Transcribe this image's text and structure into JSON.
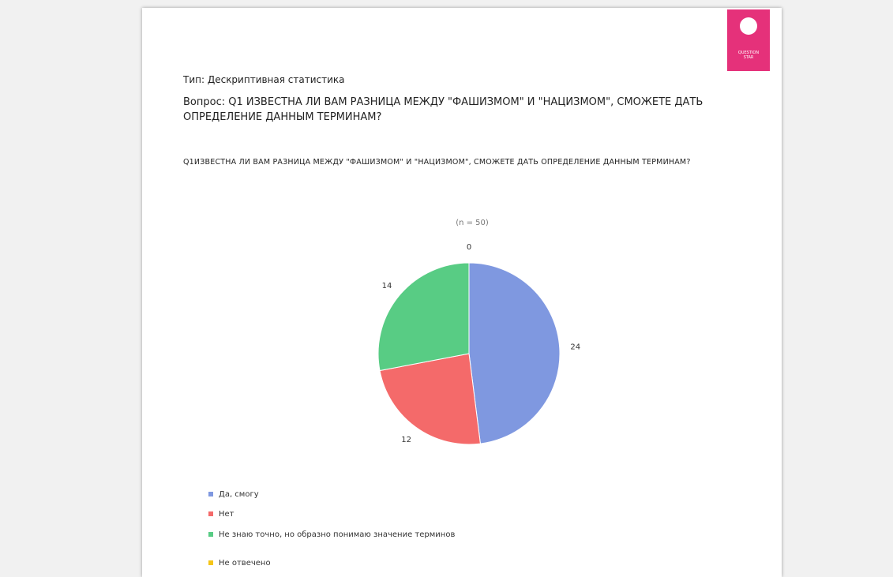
{
  "document": {
    "logo": "QUESTION STAR",
    "type_line": "Тип: Дескриптивная статистика",
    "question": "Вопрос: Q1 ИЗВЕСТНА ЛИ ВАМ РАЗНИЦА МЕЖДУ \"ФАШИЗМОМ\" И \"НАЦИЗМОМ\", СМОЖЕТЕ ДАТЬ ОПРЕДЕЛЕНИЕ ДАННЫМ ТЕРМИНАМ?"
  },
  "chart_data": {
    "type": "pie",
    "title": "Q1ИЗВЕСТНА ЛИ ВАМ РАЗНИЦА МЕЖДУ \"ФАШИЗМОМ\" И \"НАЦИЗМОМ\", СМОЖЕТЕ ДАТЬ ОПРЕДЕЛЕНИЕ ДАННЫМ ТЕРМИНАМ?",
    "subtitle": "(n = 50)",
    "categories": [
      "Да, смогу",
      "Нет",
      "Не знаю точно, но образно понимаю значение терминов",
      "Не отвечено"
    ],
    "values": [
      24,
      12,
      14,
      0
    ],
    "colors": [
      "#7f98e0",
      "#f46a6a",
      "#58cc84",
      "#f5c518"
    ],
    "legend": "bottom-left"
  }
}
